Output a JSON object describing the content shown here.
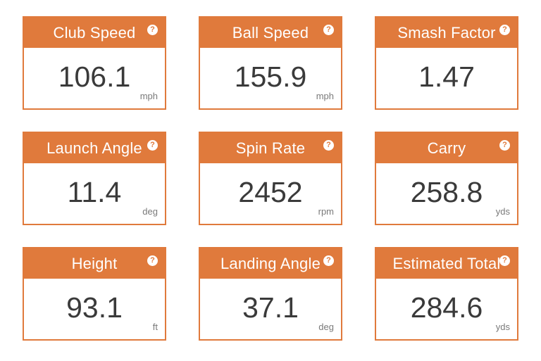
{
  "accent_color": "#e07a3c",
  "help_icon": "question-mark",
  "metrics": [
    {
      "title": "Club Speed",
      "value": "106.1",
      "unit": "mph"
    },
    {
      "title": "Ball Speed",
      "value": "155.9",
      "unit": "mph"
    },
    {
      "title": "Smash Factor",
      "value": "1.47",
      "unit": ""
    },
    {
      "title": "Launch Angle",
      "value": "11.4",
      "unit": "deg"
    },
    {
      "title": "Spin Rate",
      "value": "2452",
      "unit": "rpm"
    },
    {
      "title": "Carry",
      "value": "258.8",
      "unit": "yds"
    },
    {
      "title": "Height",
      "value": "93.1",
      "unit": "ft"
    },
    {
      "title": "Landing Angle",
      "value": "37.1",
      "unit": "deg"
    },
    {
      "title": "Estimated Total",
      "value": "284.6",
      "unit": "yds"
    }
  ]
}
